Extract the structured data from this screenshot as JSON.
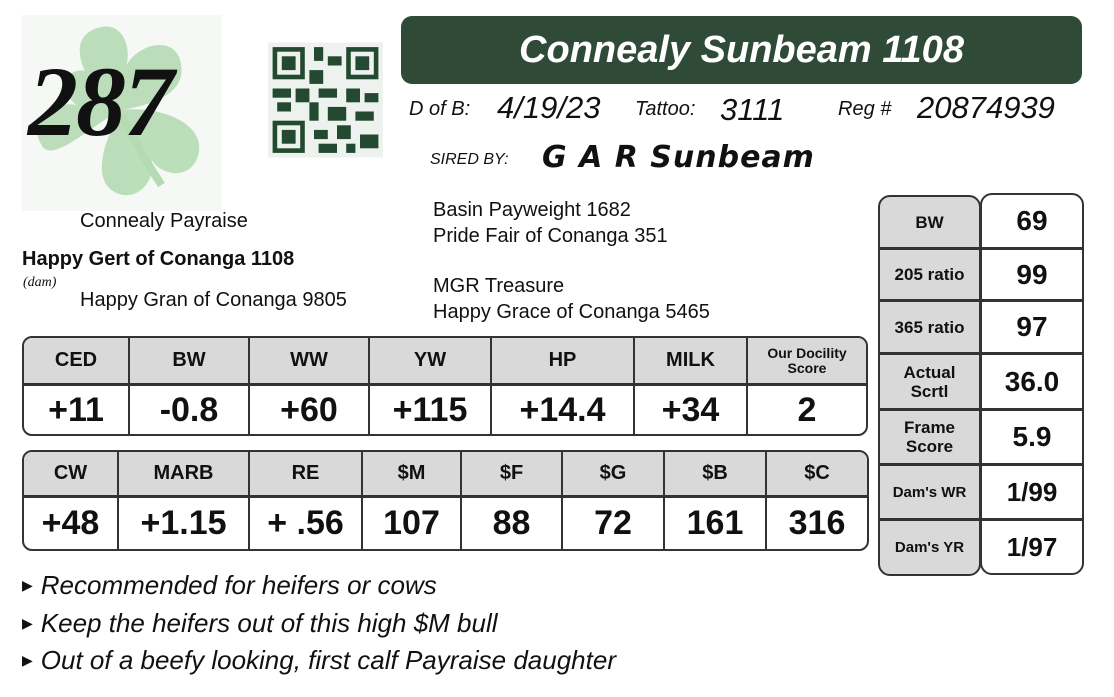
{
  "lot_number": "287",
  "title": "Connealy Sunbeam 1108",
  "info": {
    "dob_label": "D of B:",
    "dob": "4/19/23",
    "tattoo_label": "Tattoo:",
    "tattoo": "3111",
    "reg_label": "Reg #",
    "reg": "20874939",
    "sired_by_label": "SIRED BY:",
    "sire": "G A R Sunbeam"
  },
  "pedigree": {
    "sire_sire": "Basin Payweight 1682",
    "sire_dam": "Pride Fair of Conanga 351",
    "dam_sire": "Connealy Payraise",
    "dam": "Happy Gert of Conanga 1108",
    "dam_label": "(dam)",
    "dam_dam": "Happy Gran of Conanga 9805",
    "dam_dam_sire": "MGR Treasure",
    "dam_dam_dam": "Happy Grace of Conanga 5465"
  },
  "epd1": {
    "headers": [
      "CED",
      "BW",
      "WW",
      "YW",
      "HP",
      "MILK",
      "Our Docility Score"
    ],
    "values": [
      "+11",
      "-0.8",
      "+60",
      "+115",
      "+14.4",
      "+34",
      "2"
    ]
  },
  "epd2": {
    "headers": [
      "CW",
      "MARB",
      "RE",
      "$M",
      "$F",
      "$G",
      "$B",
      "$C"
    ],
    "values": [
      "+48",
      "+1.15",
      "+ .56",
      "107",
      "88",
      "72",
      "161",
      "316"
    ]
  },
  "performance": [
    {
      "label": "BW",
      "value": "69"
    },
    {
      "label": "205 ratio",
      "value": "99"
    },
    {
      "label": "365 ratio",
      "value": "97"
    },
    {
      "label": "Actual Scrtl",
      "value": "36.0"
    },
    {
      "label": "Frame Score",
      "value": "5.9"
    },
    {
      "label": "Dam's WR",
      "value": "1/99"
    },
    {
      "label": "Dam's YR",
      "value": "1/97"
    }
  ],
  "comments": [
    "Recommended for heifers or cows",
    "Keep the heifers out of this high $M bull",
    "Out of a beefy looking, first calf Payraise daughter"
  ],
  "colors": {
    "title_bar": "#2f4a36",
    "clover": "#a9d4a9",
    "header_gray": "#d9d9d9"
  }
}
